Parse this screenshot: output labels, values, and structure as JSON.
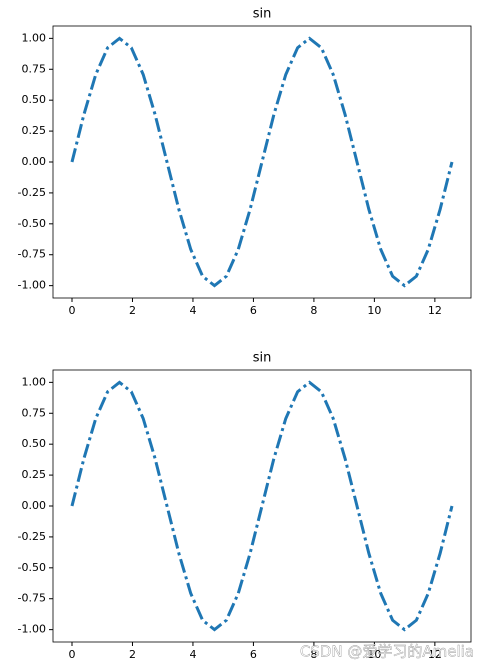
{
  "chart_data": [
    {
      "type": "line",
      "title": "sin",
      "x": [
        0,
        0.393,
        0.785,
        1.178,
        1.571,
        1.963,
        2.356,
        2.749,
        3.142,
        3.534,
        3.927,
        4.32,
        4.712,
        5.105,
        5.498,
        5.89,
        6.283,
        6.676,
        7.069,
        7.461,
        7.854,
        8.247,
        8.639,
        9.032,
        9.425,
        9.817,
        10.21,
        10.603,
        10.996,
        11.388,
        11.781,
        12.174,
        12.566
      ],
      "series": [
        {
          "color": "#1f77b4",
          "values": [
            0,
            0.383,
            0.707,
            0.924,
            1,
            0.924,
            0.707,
            0.383,
            0,
            -0.383,
            -0.707,
            -0.924,
            -1,
            -0.924,
            -0.707,
            -0.383,
            0,
            0.383,
            0.707,
            0.924,
            1,
            0.924,
            0.707,
            0.383,
            0,
            -0.383,
            -0.707,
            -0.924,
            -1,
            -0.924,
            -0.707,
            -0.383,
            0
          ]
        }
      ],
      "line_style": "dashdot",
      "xlim": [
        -0.628,
        13.195
      ],
      "ylim": [
        -1.1,
        1.1
      ],
      "xticks": [
        0,
        2,
        4,
        6,
        8,
        10,
        12
      ],
      "yticks": [
        {
          "value": -1,
          "label": "-1.00"
        },
        {
          "value": -0.75,
          "label": "-0.75"
        },
        {
          "value": -0.5,
          "label": "-0.50"
        },
        {
          "value": -0.25,
          "label": "-0.25"
        },
        {
          "value": 0,
          "label": "0.00"
        },
        {
          "value": 0.25,
          "label": "0.25"
        },
        {
          "value": 0.5,
          "label": "0.50"
        },
        {
          "value": 0.75,
          "label": "0.75"
        },
        {
          "value": 1,
          "label": "1.00"
        }
      ]
    },
    {
      "type": "line",
      "title": "sin",
      "x": [
        0,
        0.393,
        0.785,
        1.178,
        1.571,
        1.963,
        2.356,
        2.749,
        3.142,
        3.534,
        3.927,
        4.32,
        4.712,
        5.105,
        5.498,
        5.89,
        6.283,
        6.676,
        7.069,
        7.461,
        7.854,
        8.247,
        8.639,
        9.032,
        9.425,
        9.817,
        10.21,
        10.603,
        10.996,
        11.388,
        11.781,
        12.174,
        12.566
      ],
      "series": [
        {
          "color": "#1f77b4",
          "values": [
            0,
            0.383,
            0.707,
            0.924,
            1,
            0.924,
            0.707,
            0.383,
            0,
            -0.383,
            -0.707,
            -0.924,
            -1,
            -0.924,
            -0.707,
            -0.383,
            0,
            0.383,
            0.707,
            0.924,
            1,
            0.924,
            0.707,
            0.383,
            0,
            -0.383,
            -0.707,
            -0.924,
            -1,
            -0.924,
            -0.707,
            -0.383,
            0
          ]
        }
      ],
      "line_style": "dashdot",
      "xlim": [
        -0.628,
        13.195
      ],
      "ylim": [
        -1.1,
        1.1
      ],
      "xticks": [
        0,
        2,
        4,
        6,
        8,
        10,
        12
      ],
      "yticks": [
        {
          "value": -1,
          "label": "-1.00"
        },
        {
          "value": -0.75,
          "label": "-0.75"
        },
        {
          "value": -0.5,
          "label": "-0.50"
        },
        {
          "value": -0.25,
          "label": "-0.25"
        },
        {
          "value": 0,
          "label": "0.00"
        },
        {
          "value": 0.25,
          "label": "0.25"
        },
        {
          "value": 0.5,
          "label": "0.50"
        },
        {
          "value": 0.75,
          "label": "0.75"
        },
        {
          "value": 1,
          "label": "1.00"
        }
      ]
    }
  ],
  "watermark": "CSDN @爱学习的Amelia"
}
